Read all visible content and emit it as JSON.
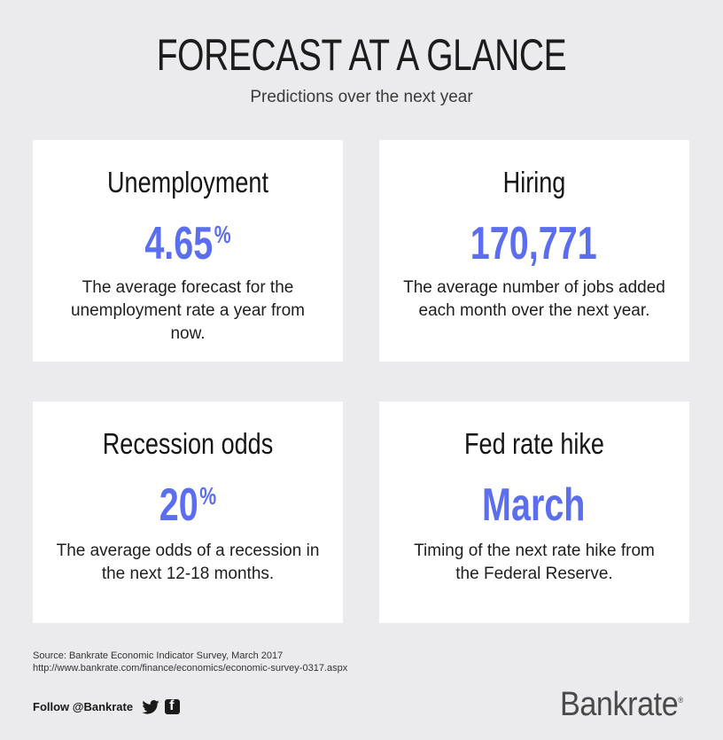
{
  "header": {
    "title": "FORECAST AT A GLANCE",
    "subtitle": "Predictions over the next year"
  },
  "cards": [
    {
      "heading": "Unemployment",
      "value": "4.65",
      "unit": "%",
      "description": "The average forecast for the unemployment rate a year from now."
    },
    {
      "heading": "Hiring",
      "value": "170,771",
      "unit": "",
      "description": "The average number of jobs added each month over the next year."
    },
    {
      "heading": "Recession odds",
      "value": "20",
      "unit": "%",
      "description": "The average odds of a recession in the next 12-18 months."
    },
    {
      "heading": "Fed rate hike",
      "value": "March",
      "unit": "",
      "description": "Timing of the next rate hike from the Federal Reserve."
    }
  ],
  "source": {
    "line1": "Source: Bankrate Economic Indicator Survey, March 2017",
    "line2": "http://www.bankrate.com/finance/economics/economic-survey-0317.aspx"
  },
  "footer": {
    "follow": "Follow @Bankrate",
    "logo": "Bankrate",
    "logo_mark": "®"
  },
  "colors": {
    "accent": "#5b6ef0",
    "background": "#ebebed",
    "card": "#ffffff",
    "text": "#1a1a1a"
  },
  "icons": [
    "twitter-icon",
    "facebook-icon"
  ]
}
